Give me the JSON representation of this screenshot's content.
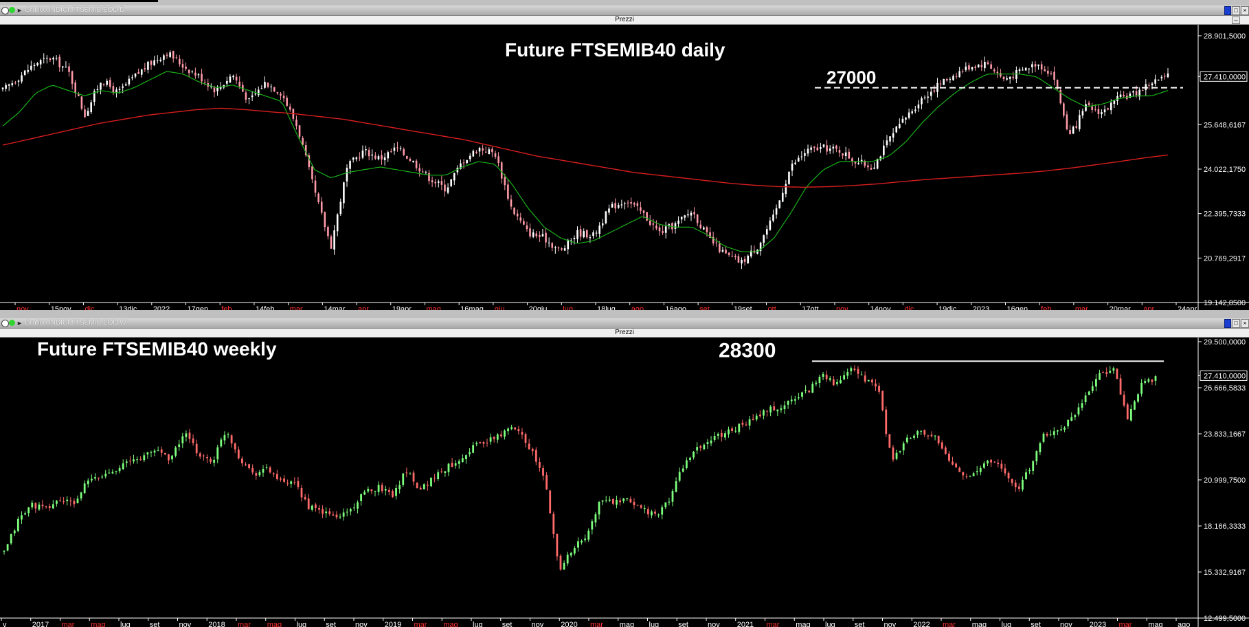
{
  "windows": [
    {
      "id": "daily",
      "caption": "Grafico INDICI.FTSEMIB EOD D",
      "subtitle": "Prezzi",
      "controls": [
        "–",
        "□",
        "×"
      ]
    },
    {
      "id": "weekly",
      "caption": "Grafico INDICI.FTSEMIB EOD W",
      "subtitle": "Prezzi",
      "controls": [
        "–",
        "□",
        "×"
      ]
    }
  ],
  "chart_data": [
    {
      "type": "candlestick",
      "title": "Future FTSEMIB40 daily",
      "annotation": {
        "label": "27000",
        "level": 27000,
        "style": "dashed"
      },
      "ylim": [
        19142.85,
        28901.5
      ],
      "y_ticks": [
        "28.901,5000",
        "27.410,0000",
        "25.648,6167",
        "24.022,1750",
        "22.395,7333",
        "20.769,2917",
        "19.142,8500"
      ],
      "last_price": "27.410,0000",
      "x_ticks": [
        {
          "label": "nov",
          "red": true
        },
        {
          "label": "15nov",
          "red": false
        },
        {
          "label": "dic",
          "red": true
        },
        {
          "label": "13dic",
          "red": false
        },
        {
          "label": "2022",
          "red": false
        },
        {
          "label": "17gen",
          "red": false
        },
        {
          "label": "feb",
          "red": true
        },
        {
          "label": "14feb",
          "red": false
        },
        {
          "label": "mar",
          "red": true
        },
        {
          "label": "14mar",
          "red": false
        },
        {
          "label": "apr",
          "red": true
        },
        {
          "label": "19apr",
          "red": false
        },
        {
          "label": "mag",
          "red": true
        },
        {
          "label": "16mag",
          "red": false
        },
        {
          "label": "giu",
          "red": true
        },
        {
          "label": "20giu",
          "red": false
        },
        {
          "label": "lug",
          "red": true
        },
        {
          "label": "18lug",
          "red": false
        },
        {
          "label": "ago",
          "red": true
        },
        {
          "label": "16ago",
          "red": false
        },
        {
          "label": "set",
          "red": true
        },
        {
          "label": "19set",
          "red": false
        },
        {
          "label": "ott",
          "red": true
        },
        {
          "label": "17ott",
          "red": false
        },
        {
          "label": "nov",
          "red": true
        },
        {
          "label": "14nov",
          "red": false
        },
        {
          "label": "dic",
          "red": true
        },
        {
          "label": "19dic",
          "red": false
        },
        {
          "label": "2023",
          "red": false
        },
        {
          "label": "16gen",
          "red": false
        },
        {
          "label": "feb",
          "red": true
        },
        {
          "label": "mar",
          "red": true
        },
        {
          "label": "20mar",
          "red": false
        },
        {
          "label": "apr",
          "red": true
        },
        {
          "label": "24apr",
          "red": false
        }
      ],
      "close_path": [
        26900,
        27400,
        27900,
        28100,
        27600,
        26000,
        27300,
        26800,
        27400,
        27900,
        28300,
        27800,
        27400,
        26900,
        27500,
        26500,
        27200,
        26800,
        25500,
        23200,
        21200,
        24100,
        24700,
        24400,
        24800,
        24300,
        23700,
        23300,
        24300,
        24800,
        24600,
        22600,
        21700,
        21500,
        21000,
        21700,
        21600,
        22600,
        22900,
        22400,
        21700,
        22000,
        22500,
        21500,
        20900,
        20600,
        21200,
        22300,
        24100,
        24700,
        24800,
        24700,
        24300,
        24100,
        25100,
        25900,
        26600,
        27100,
        27500,
        27800,
        27900,
        27300,
        27600,
        27900,
        27500,
        25200,
        26300,
        26100,
        26600,
        26800,
        27200,
        27400
      ],
      "ma_short_path": [
        25600,
        26100,
        26800,
        27100,
        26900,
        26700,
        26900,
        26800,
        27000,
        27300,
        27600,
        27500,
        27200,
        27000,
        27100,
        26900,
        26700,
        26500,
        25200,
        24000,
        23700,
        23900,
        24000,
        24100,
        24000,
        23900,
        23800,
        23800,
        24100,
        24300,
        24200,
        23500,
        22600,
        21900,
        21500,
        21300,
        21400,
        21700,
        22000,
        22300,
        22000,
        21900,
        21900,
        21600,
        21200,
        21000,
        21000,
        21500,
        22400,
        23400,
        24000,
        24300,
        24300,
        24300,
        24500,
        25000,
        25700,
        26300,
        26800,
        27200,
        27500,
        27500,
        27500,
        27400,
        27000,
        26600,
        26300,
        26400,
        26600,
        26700,
        26700,
        26900
      ],
      "ma_long_path": [
        24900,
        25100,
        25300,
        25500,
        25700,
        25850,
        26000,
        26100,
        26200,
        26250,
        26200,
        26120,
        26050,
        25950,
        25850,
        25700,
        25550,
        25400,
        25250,
        25100,
        24900,
        24700,
        24500,
        24350,
        24200,
        24050,
        23900,
        23800,
        23700,
        23600,
        23500,
        23430,
        23380,
        23360,
        23380,
        23420,
        23480,
        23560,
        23640,
        23700,
        23760,
        23820,
        23880,
        23960,
        24060,
        24180,
        24300,
        24430,
        24540
      ],
      "series_colors": {
        "candle_up": "#ffffff",
        "candle_down": "#ff9aa8",
        "ma_short": "#18b218",
        "ma_long": "#d81e1e"
      }
    },
    {
      "type": "candlestick",
      "title": "Future FTSEMIB40 weekly",
      "annotation": {
        "label": "28300",
        "level": 28300,
        "style": "solid"
      },
      "ylim": [
        12499.5,
        29500.0
      ],
      "y_ticks": [
        "29.500,0000",
        "27.410,0000",
        "26.666,5833",
        "23.833,1667",
        "20.999,7500",
        "18.166,3333",
        "15.332,9167",
        "12.499,5000"
      ],
      "last_price": "27.410,0000",
      "x_ticks": [
        {
          "label": "v",
          "red": false
        },
        {
          "label": "2017",
          "red": false
        },
        {
          "label": "mar",
          "red": true
        },
        {
          "label": "mag",
          "red": true
        },
        {
          "label": "lug",
          "red": false
        },
        {
          "label": "set",
          "red": false
        },
        {
          "label": "nov",
          "red": false
        },
        {
          "label": "2018",
          "red": false
        },
        {
          "label": "mar",
          "red": true
        },
        {
          "label": "mag",
          "red": true
        },
        {
          "label": "lug",
          "red": false
        },
        {
          "label": "set",
          "red": false
        },
        {
          "label": "nov",
          "red": false
        },
        {
          "label": "2019",
          "red": false
        },
        {
          "label": "mar",
          "red": true
        },
        {
          "label": "mag",
          "red": true
        },
        {
          "label": "lug",
          "red": false
        },
        {
          "label": "set",
          "red": false
        },
        {
          "label": "nov",
          "red": false
        },
        {
          "label": "2020",
          "red": false
        },
        {
          "label": "mar",
          "red": true
        },
        {
          "label": "mag",
          "red": false
        },
        {
          "label": "lug",
          "red": false
        },
        {
          "label": "set",
          "red": false
        },
        {
          "label": "nov",
          "red": false
        },
        {
          "label": "2021",
          "red": false
        },
        {
          "label": "mar",
          "red": true
        },
        {
          "label": "mag",
          "red": false
        },
        {
          "label": "lug",
          "red": false
        },
        {
          "label": "set",
          "red": false
        },
        {
          "label": "nov",
          "red": false
        },
        {
          "label": "2022",
          "red": false
        },
        {
          "label": "mar",
          "red": true
        },
        {
          "label": "mag",
          "red": false
        },
        {
          "label": "lug",
          "red": false
        },
        {
          "label": "set",
          "red": false
        },
        {
          "label": "nov",
          "red": false
        },
        {
          "label": "2023",
          "red": false
        },
        {
          "label": "mar",
          "red": true
        },
        {
          "label": "mag",
          "red": false
        },
        {
          "label": "ago",
          "red": false
        }
      ],
      "close_path": [
        16500,
        18500,
        19500,
        19200,
        19800,
        19500,
        20900,
        21200,
        21700,
        22100,
        22400,
        22900,
        22300,
        23900,
        22600,
        22100,
        24100,
        22300,
        21400,
        21700,
        20800,
        20700,
        19300,
        19000,
        18700,
        19200,
        20200,
        20600,
        20100,
        21600,
        20400,
        21200,
        21800,
        22400,
        23200,
        23400,
        23900,
        24300,
        22800,
        20900,
        15500,
        16800,
        17500,
        19800,
        19600,
        19700,
        19300,
        18700,
        19900,
        22000,
        22900,
        23500,
        23900,
        24300,
        24700,
        25300,
        25400,
        26100,
        26500,
        27600,
        26800,
        27800,
        27200,
        26700,
        22000,
        23500,
        23900,
        23700,
        22300,
        21400,
        21300,
        22300,
        21600,
        20400,
        21800,
        23800,
        24000,
        24800,
        26300,
        27600,
        27800,
        24700,
        26800,
        27300
      ],
      "series_colors": {
        "candle_up": "#7dff7d",
        "candle_down": "#ff6a6a"
      }
    }
  ]
}
